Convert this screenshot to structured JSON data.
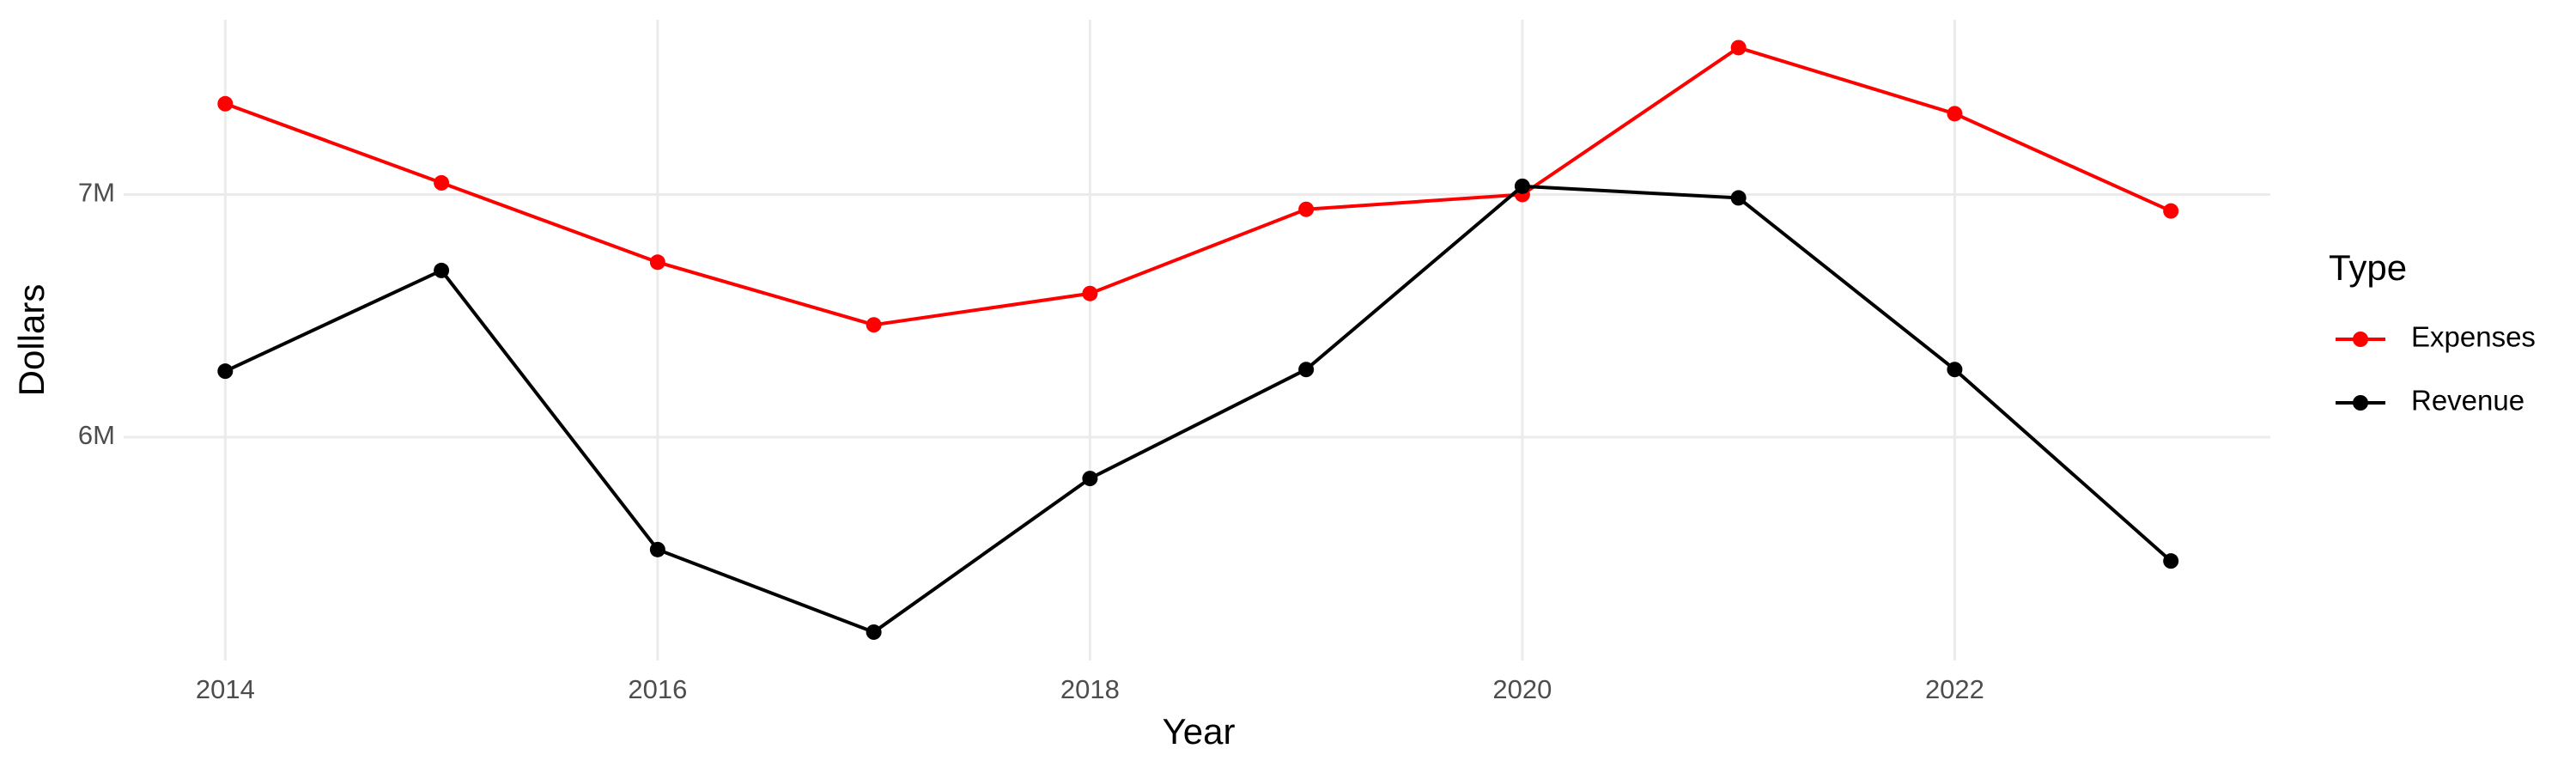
{
  "chart_data": {
    "type": "line",
    "x_label": "Year",
    "y_label": "Dollars",
    "legend_title": "Type",
    "legend": "right",
    "grid": true,
    "x": [
      2014,
      2015,
      2016,
      2017,
      2018,
      2019,
      2020,
      2021,
      2022,
      2023
    ],
    "series": [
      {
        "name": "Expenses",
        "color": "#ff0000",
        "values": [
          7374000,
          7048000,
          6721000,
          6463000,
          6592000,
          6939000,
          7000000,
          7605000,
          7333000,
          6932000
        ]
      },
      {
        "name": "Revenue",
        "color": "#000000",
        "values": [
          6272000,
          6687000,
          5537000,
          5197000,
          5830000,
          6279000,
          7034000,
          6986000,
          6279000,
          5490000
        ]
      }
    ],
    "xlim": [
      2013.53,
      2023.46
    ],
    "xticks": [
      2014,
      2016,
      2018,
      2020,
      2022
    ],
    "ylim": [
      5080000,
      7720000
    ],
    "yticks": [
      {
        "value": 6000000,
        "label": "6M"
      },
      {
        "value": 7000000,
        "label": "7M"
      }
    ]
  }
}
